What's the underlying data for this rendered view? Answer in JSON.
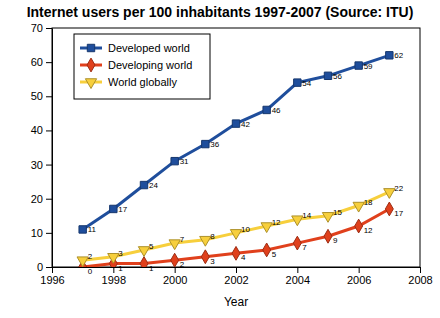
{
  "chart_data": {
    "type": "line",
    "title": "Internet users per 100 inhabitants 1997-2007 (Source: ITU)",
    "x_label": "Year",
    "x": [
      1997,
      1998,
      1999,
      2000,
      2001,
      2002,
      2003,
      2004,
      2005,
      2006,
      2007
    ],
    "series": [
      {
        "name": "Developed world",
        "color": "#1f4e9c",
        "marker": "square",
        "values": [
          11,
          17,
          24,
          31,
          36,
          42,
          46,
          54,
          56,
          59,
          62
        ]
      },
      {
        "name": "Developing world",
        "color": "#e0401c",
        "marker": "diamond",
        "values": [
          0,
          1,
          1,
          2,
          3,
          4,
          5,
          7,
          9,
          12,
          17
        ]
      },
      {
        "name": "World globally",
        "color": "#f7cf3c",
        "marker": "triangle-down",
        "values": [
          2,
          3,
          5,
          7,
          8,
          10,
          12,
          14,
          15,
          18,
          22
        ]
      }
    ],
    "xlim": [
      1996,
      2008
    ],
    "xticks": [
      1996,
      1998,
      2000,
      2002,
      2004,
      2006,
      2008
    ],
    "ylim": [
      0,
      70
    ],
    "yticks": [
      0,
      10,
      20,
      30,
      40,
      50,
      60,
      70
    ],
    "grid": false,
    "legend": "upper left",
    "data_labels": true
  }
}
